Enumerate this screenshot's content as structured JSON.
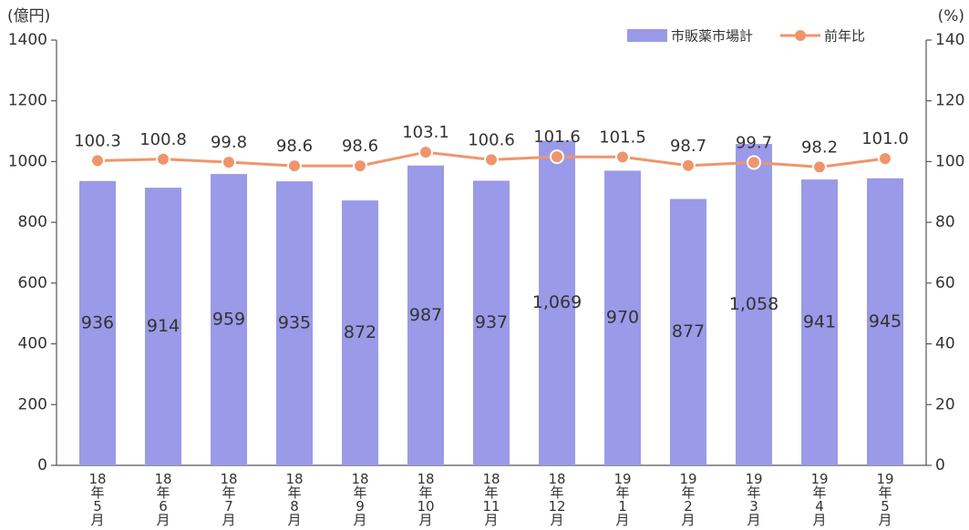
{
  "chart_data": {
    "type": "bar-line",
    "y_axis_label": "(億円)",
    "y2_axis_label": "(%)",
    "categories": [
      "18年5月",
      "18年6月",
      "18年7月",
      "18年8月",
      "18年9月",
      "18年10月",
      "18年11月",
      "18年12月",
      "19年1月",
      "19年2月",
      "19年3月",
      "19年4月",
      "19年5月"
    ],
    "series": [
      {
        "name": "市販薬市場計",
        "type": "bar",
        "color": "#9a9ae8",
        "axis": "y",
        "values": [
          936,
          914,
          959,
          935,
          872,
          987,
          937,
          1069,
          970,
          877,
          1058,
          941,
          945
        ],
        "value_labels": [
          "936",
          "914",
          "959",
          "935",
          "872",
          "987",
          "937",
          "1,069",
          "970",
          "877",
          "1,058",
          "941",
          "945"
        ]
      },
      {
        "name": "前年比",
        "type": "line",
        "color": "#f0956b",
        "axis": "y2",
        "values": [
          100.3,
          100.8,
          99.8,
          98.6,
          98.6,
          103.1,
          100.6,
          101.6,
          101.5,
          98.7,
          99.7,
          98.2,
          101.0
        ],
        "value_labels": [
          "100.3",
          "100.8",
          "99.8",
          "98.6",
          "98.6",
          "103.1",
          "100.6",
          "101.6",
          "101.5",
          "98.7",
          "99.7",
          "98.2",
          "101.0"
        ]
      }
    ],
    "ylim": [
      0,
      1400
    ],
    "yticks": [
      0,
      200,
      400,
      600,
      800,
      1000,
      1200,
      1400
    ],
    "y2lim": [
      0,
      140
    ],
    "y2ticks": [
      0,
      20,
      40,
      60,
      80,
      100,
      120,
      140
    ],
    "legend": "top-right"
  }
}
